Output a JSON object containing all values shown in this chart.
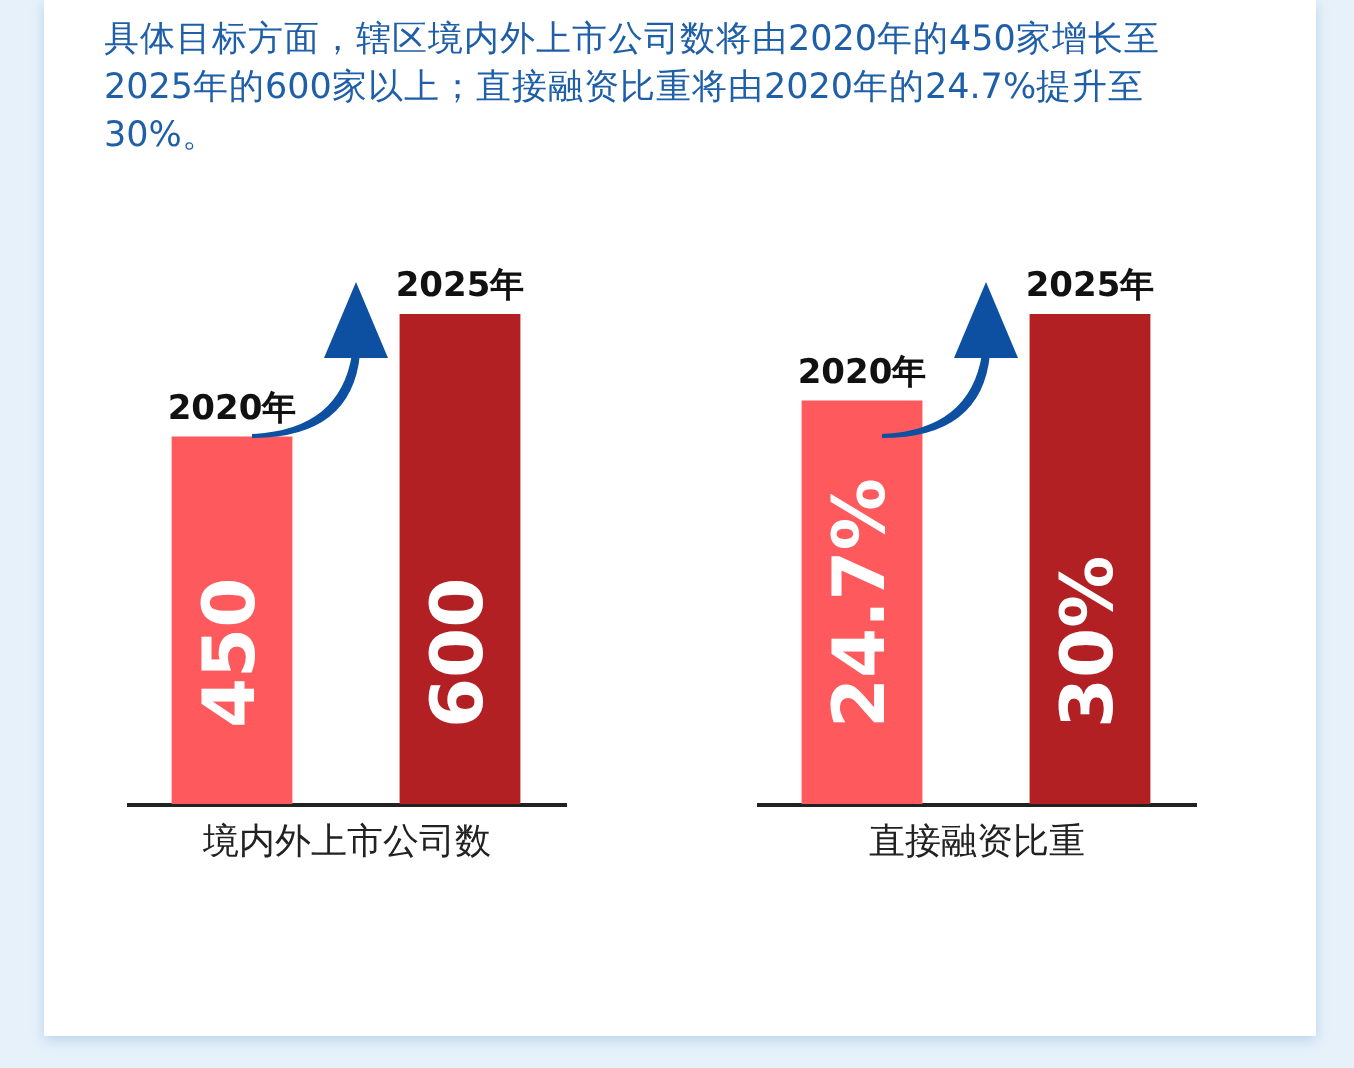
{
  "chart_data": [
    {
      "type": "bar",
      "title": "具体目标方面，辖区境内外上市公司数将由2020年的450家增长至2025年的600家以上；直接融资比重将由2020年的24.7%提升至30%。",
      "categories": [
        "2020年",
        "2025年"
      ],
      "values": [
        450,
        600
      ],
      "colors": [
        "#fe5a5d",
        "#b22024"
      ],
      "xlabel": "境内外上市公司数",
      "data_labels": true
    },
    {
      "type": "bar",
      "categories": [
        "2020年",
        "2025年"
      ],
      "values": [
        24.7,
        30
      ],
      "colors": [
        "#fe5a5d",
        "#b22024"
      ],
      "xlabel": "直接融资比重",
      "value_labels": [
        "24.7%",
        "30%"
      ]
    }
  ]
}
